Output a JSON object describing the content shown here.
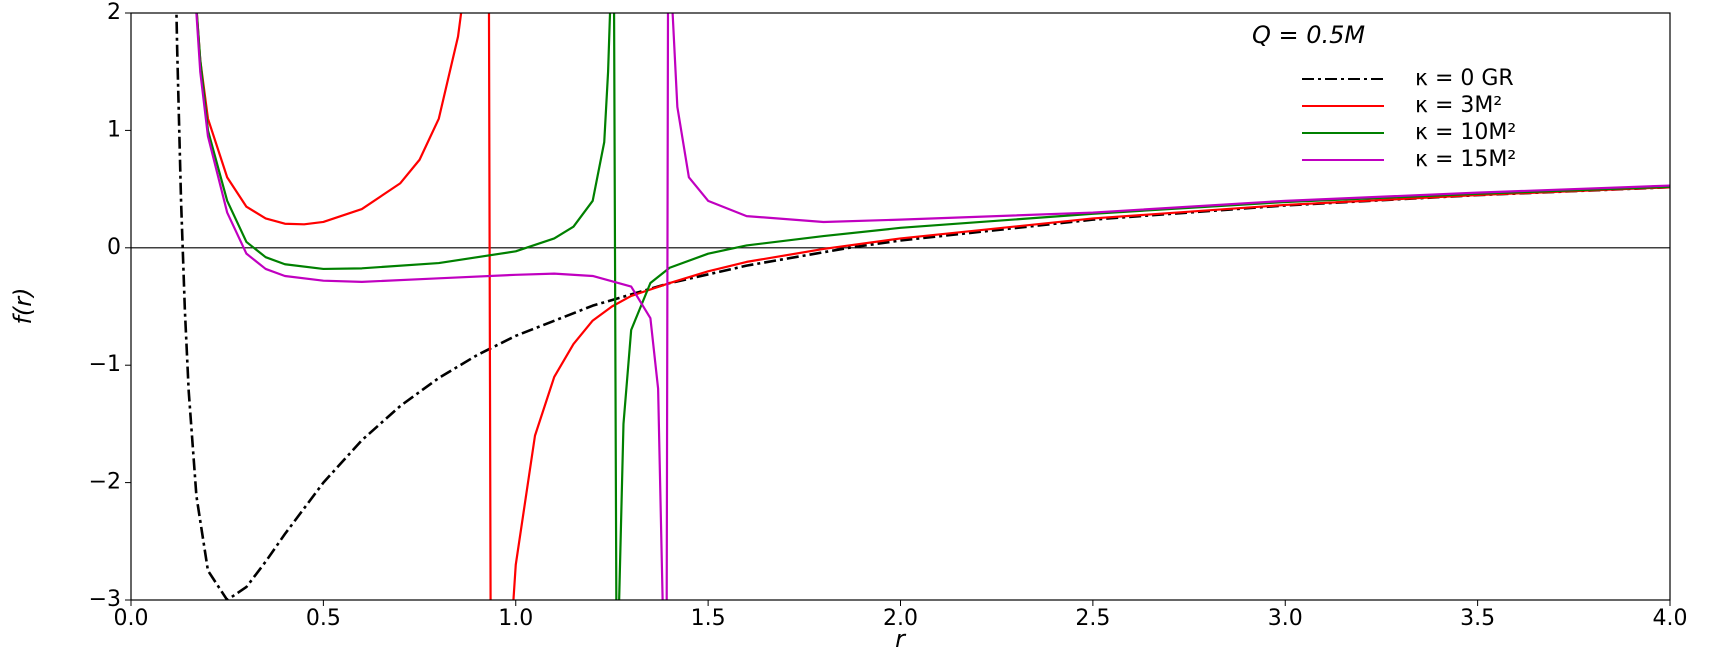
{
  "chart_data": {
    "type": "line",
    "annotation": "Q = 0.5M",
    "xlabel": "r",
    "ylabel": "f(r)",
    "xlim": [
      0,
      4
    ],
    "ylim": [
      -3,
      2
    ],
    "xticks": [
      {
        "value": 0,
        "label": "0.0"
      },
      0.5,
      {
        "value": 1,
        "label": "1.0"
      },
      1.5,
      {
        "value": 2,
        "label": "2.0"
      },
      2.5,
      {
        "value": 3,
        "label": "3.0"
      },
      3.5,
      {
        "value": 4,
        "label": "4.0"
      }
    ],
    "yticks": [
      {
        "value": -3,
        "label": "−3"
      },
      {
        "value": -2,
        "label": "−2"
      },
      {
        "value": -1,
        "label": "−1"
      },
      0,
      1,
      2
    ],
    "legend": "upper right",
    "series": [
      {
        "name": "κ = 0 GR",
        "color": "#000000",
        "linestyle": "dashdot",
        "x": [
          0.115,
          0.12,
          0.13,
          0.14,
          0.15,
          0.17,
          0.2,
          0.25,
          0.3,
          0.35,
          0.4,
          0.5,
          0.6,
          0.7,
          0.8,
          0.9,
          1.0,
          1.2,
          1.4,
          1.6,
          1.866,
          2.0,
          2.5,
          3.0,
          3.5,
          4.0
        ],
        "values": [
          2.513,
          1.694,
          0.408,
          -0.531,
          -1.222,
          -2.114,
          -2.75,
          -3,
          -2.889,
          -2.673,
          -2.438,
          -2,
          -1.639,
          -1.347,
          -1.109,
          -0.913,
          -0.75,
          -0.493,
          -0.301,
          -0.152,
          0,
          0.0625,
          0.24,
          0.361,
          0.449,
          0.516
        ]
      },
      {
        "name": "κ = 3M²",
        "color": "#ff0000",
        "linestyle": "solid",
        "x": [
          0.16,
          0.18,
          0.2,
          0.25,
          0.3,
          0.35,
          0.4,
          0.45,
          0.5,
          0.6,
          0.7,
          0.75,
          0.8,
          0.85,
          0.87,
          0.9,
          0.93,
          0.935,
          0.96,
          0.99,
          1.0,
          1.05,
          1.1,
          1.15,
          1.2,
          1.25,
          1.3,
          1.4,
          1.5,
          1.6,
          1.8,
          2.0,
          2.5,
          3.0,
          3.5,
          4.0
        ],
        "values": [
          2.5,
          1.6,
          1.1,
          0.6,
          0.35,
          0.25,
          0.205,
          0.2,
          0.22,
          0.33,
          0.55,
          0.75,
          1.1,
          1.8,
          2.3,
          null,
          2.5,
          -3.5,
          null,
          -3.2,
          -2.7,
          -1.6,
          -1.1,
          -0.82,
          -0.62,
          -0.5,
          -0.41,
          -0.3,
          -0.2,
          -0.12,
          -0.01,
          0.08,
          0.25,
          0.365,
          0.45,
          0.516
        ]
      },
      {
        "name": "κ = 10M²",
        "color": "#008000",
        "linestyle": "solid",
        "x": [
          0.16,
          0.18,
          0.2,
          0.25,
          0.3,
          0.35,
          0.4,
          0.5,
          0.6,
          0.8,
          1.0,
          1.1,
          1.15,
          1.2,
          1.23,
          1.24,
          1.25,
          1.252,
          1.255,
          1.262,
          1.265,
          1.28,
          1.3,
          1.35,
          1.4,
          1.5,
          1.6,
          1.8,
          2.0,
          2.5,
          3.0,
          3.5,
          4.0
        ],
        "values": [
          2.5,
          1.6,
          1.0,
          0.4,
          0.05,
          -0.08,
          -0.14,
          -0.18,
          -0.175,
          -0.13,
          -0.03,
          0.08,
          0.18,
          0.4,
          0.9,
          1.5,
          2.5,
          null,
          2.5,
          -3.5,
          -3.5,
          -1.5,
          -0.7,
          -0.3,
          -0.17,
          -0.05,
          0.02,
          0.1,
          0.17,
          0.29,
          0.39,
          0.46,
          0.52
        ]
      },
      {
        "name": "κ = 15M²",
        "color": "#c000c0",
        "linestyle": "solid",
        "x": [
          0.16,
          0.18,
          0.2,
          0.25,
          0.3,
          0.35,
          0.4,
          0.5,
          0.6,
          0.8,
          1.0,
          1.1,
          1.2,
          1.3,
          1.35,
          1.37,
          1.385,
          1.39,
          1.392,
          1.396,
          1.398,
          1.4,
          1.42,
          1.45,
          1.5,
          1.6,
          1.8,
          2.0,
          2.5,
          3.0,
          3.5,
          4.0
        ],
        "values": [
          2.5,
          1.5,
          0.95,
          0.3,
          -0.05,
          -0.18,
          -0.24,
          -0.28,
          -0.29,
          -0.26,
          -0.23,
          -0.22,
          -0.24,
          -0.33,
          -0.6,
          -1.2,
          -3.5,
          null,
          -3.5,
          2.5,
          null,
          2.5,
          1.2,
          0.6,
          0.4,
          0.27,
          0.22,
          0.24,
          0.3,
          0.4,
          0.47,
          0.53
        ]
      }
    ]
  }
}
